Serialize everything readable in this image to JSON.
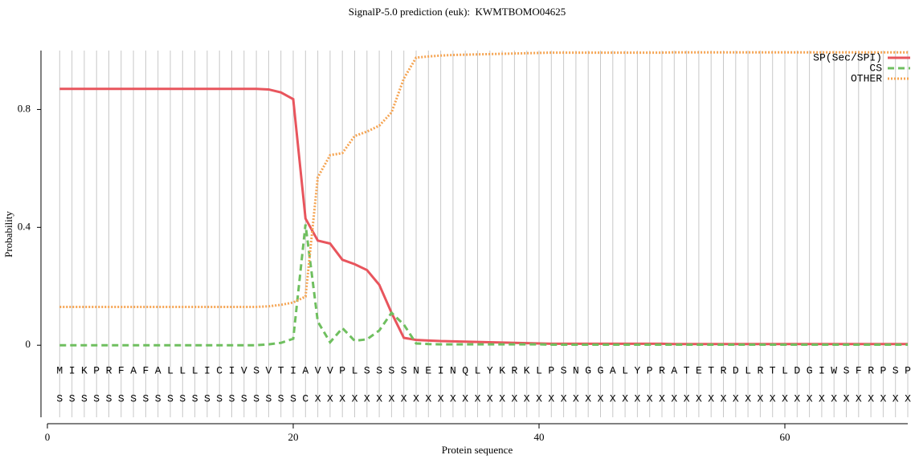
{
  "chart_data": {
    "type": "line",
    "title": "SignalP-5.0 prediction (euk):  KWMTBOMO04625",
    "xlabel": "Protein sequence",
    "ylabel": "Probability",
    "x": [
      1,
      2,
      3,
      4,
      5,
      6,
      7,
      8,
      9,
      10,
      11,
      12,
      13,
      14,
      15,
      16,
      17,
      18,
      19,
      20,
      21,
      22,
      23,
      24,
      25,
      26,
      27,
      28,
      29,
      30,
      31,
      32,
      33,
      34,
      35,
      36,
      37,
      38,
      39,
      40,
      41,
      42,
      43,
      44,
      45,
      46,
      47,
      48,
      49,
      50,
      51,
      52,
      53,
      54,
      55,
      56,
      57,
      58,
      59,
      60,
      61,
      62,
      63,
      64,
      65,
      66,
      67,
      68,
      69,
      70
    ],
    "residues": [
      "M",
      "I",
      "K",
      "P",
      "R",
      "F",
      "A",
      "F",
      "A",
      "L",
      "L",
      "L",
      "I",
      "C",
      "I",
      "V",
      "S",
      "V",
      "T",
      "I",
      "A",
      "V",
      "V",
      "P",
      "L",
      "S",
      "S",
      "S",
      "S",
      "N",
      "E",
      "I",
      "N",
      "Q",
      "L",
      "Y",
      "K",
      "R",
      "K",
      "L",
      "P",
      "S",
      "N",
      "G",
      "G",
      "A",
      "L",
      "Y",
      "P",
      "R",
      "A",
      "T",
      "E",
      "T",
      "R",
      "D",
      "L",
      "R",
      "T",
      "L",
      "D",
      "G",
      "I",
      "W",
      "S",
      "F",
      "R",
      "P",
      "S",
      "P"
    ],
    "labels": [
      "S",
      "S",
      "S",
      "S",
      "S",
      "S",
      "S",
      "S",
      "S",
      "S",
      "S",
      "S",
      "S",
      "S",
      "S",
      "S",
      "S",
      "S",
      "S",
      "S",
      "C",
      "X",
      "X",
      "X",
      "X",
      "X",
      "X",
      "X",
      "X",
      "X",
      "X",
      "X",
      "X",
      "X",
      "X",
      "X",
      "X",
      "X",
      "X",
      "X",
      "X",
      "X",
      "X",
      "X",
      "X",
      "X",
      "X",
      "X",
      "X",
      "X",
      "X",
      "X",
      "X",
      "X",
      "X",
      "X",
      "X",
      "X",
      "X",
      "X",
      "X",
      "X",
      "X",
      "X",
      "X",
      "X",
      "X",
      "X",
      "X",
      "X"
    ],
    "series": [
      {
        "name": "SP(Sec/SPI)",
        "color": "#e8555d",
        "style": "solid",
        "values": [
          0.87,
          0.87,
          0.87,
          0.87,
          0.87,
          0.87,
          0.87,
          0.87,
          0.87,
          0.87,
          0.87,
          0.87,
          0.87,
          0.87,
          0.87,
          0.87,
          0.87,
          0.868,
          0.858,
          0.835,
          0.43,
          0.355,
          0.345,
          0.29,
          0.275,
          0.255,
          0.205,
          0.11,
          0.025,
          0.018,
          0.016,
          0.014,
          0.013,
          0.012,
          0.011,
          0.01,
          0.009,
          0.008,
          0.007,
          0.006,
          0.005,
          0.005,
          0.005,
          0.005,
          0.005,
          0.005,
          0.005,
          0.005,
          0.005,
          0.005,
          0.004,
          0.004,
          0.004,
          0.004,
          0.004,
          0.004,
          0.004,
          0.004,
          0.004,
          0.004,
          0.004,
          0.004,
          0.004,
          0.004,
          0.004,
          0.004,
          0.004,
          0.004,
          0.004,
          0.004
        ]
      },
      {
        "name": "CS",
        "color": "#6fbf5f",
        "style": "dashed",
        "values": [
          0,
          0,
          0,
          0,
          0,
          0,
          0,
          0,
          0,
          0,
          0,
          0,
          0,
          0,
          0,
          0,
          0,
          0.003,
          0.008,
          0.022,
          0.41,
          0.08,
          0.01,
          0.058,
          0.015,
          0.02,
          0.05,
          0.11,
          0.07,
          0.006,
          0.004,
          0.003,
          0.003,
          0.003,
          0.003,
          0.003,
          0.003,
          0.003,
          0.003,
          0.003,
          0.002,
          0.002,
          0.002,
          0.002,
          0.002,
          0.002,
          0.002,
          0.002,
          0.002,
          0.002,
          0.002,
          0.002,
          0.002,
          0.002,
          0.002,
          0.002,
          0.002,
          0.002,
          0.002,
          0.002,
          0.002,
          0.002,
          0.002,
          0.002,
          0.002,
          0.002,
          0.002,
          0.002,
          0.002,
          0.002
        ]
      },
      {
        "name": "OTHER",
        "color": "#f5a452",
        "style": "dotted",
        "values": [
          0.13,
          0.13,
          0.13,
          0.13,
          0.13,
          0.13,
          0.13,
          0.13,
          0.13,
          0.13,
          0.13,
          0.13,
          0.13,
          0.13,
          0.13,
          0.13,
          0.13,
          0.132,
          0.137,
          0.145,
          0.165,
          0.57,
          0.645,
          0.652,
          0.71,
          0.725,
          0.745,
          0.79,
          0.905,
          0.976,
          0.98,
          0.983,
          0.985,
          0.986,
          0.987,
          0.988,
          0.989,
          0.99,
          0.991,
          0.992,
          0.993,
          0.993,
          0.993,
          0.993,
          0.993,
          0.993,
          0.993,
          0.993,
          0.993,
          0.993,
          0.994,
          0.994,
          0.994,
          0.994,
          0.994,
          0.994,
          0.994,
          0.994,
          0.994,
          0.994,
          0.994,
          0.994,
          0.994,
          0.994,
          0.994,
          0.994,
          0.994,
          0.994,
          0.994,
          0.994
        ]
      }
    ],
    "xlim": [
      0,
      70
    ],
    "xticks": [
      0,
      20,
      40,
      60
    ],
    "ylim": [
      -0.25,
      1
    ],
    "yticks": [
      0,
      0.4,
      0.8
    ],
    "grid": true,
    "legend": "upper right"
  }
}
